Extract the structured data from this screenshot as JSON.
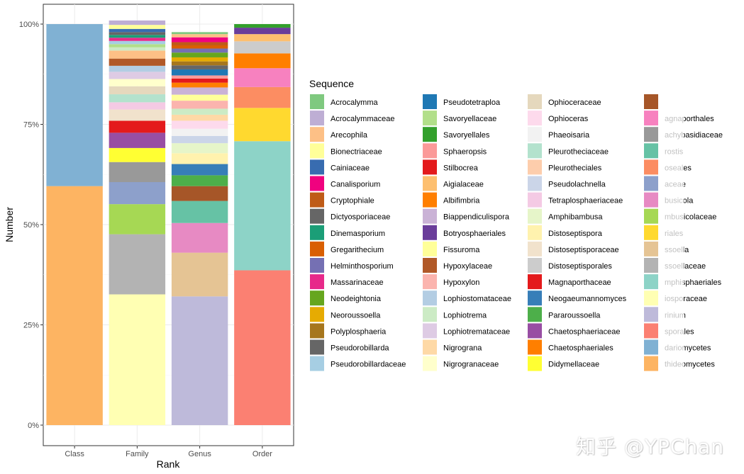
{
  "chart_data": {
    "type": "bar",
    "stacked": true,
    "percent": true,
    "xlabel": "Rank",
    "ylabel": "Number",
    "legend_title": "Sequence",
    "legend_position": "right",
    "grid": true,
    "ylim": [
      0,
      1
    ],
    "y_ticks": [
      "0%",
      "25%",
      "50%",
      "75%",
      "100%"
    ],
    "categories": [
      "Class",
      "Family",
      "Genus",
      "Order"
    ],
    "legend": [
      {
        "name": "Acrocalymma",
        "color": "#7FC97F"
      },
      {
        "name": "Acrocalymmaceae",
        "color": "#BEAED4"
      },
      {
        "name": "Arecophila",
        "color": "#FDC086"
      },
      {
        "name": "Bionectriaceae",
        "color": "#FFFF99"
      },
      {
        "name": "Cainiaceae",
        "color": "#386CB0"
      },
      {
        "name": "Canalisporium",
        "color": "#F0027F"
      },
      {
        "name": "Cryptophiale",
        "color": "#BF5B17"
      },
      {
        "name": "Dictyosporiaceae",
        "color": "#666666"
      },
      {
        "name": "Dinemasporium",
        "color": "#1B9E77"
      },
      {
        "name": "Gregarithecium",
        "color": "#D95F02"
      },
      {
        "name": "Helminthosporium",
        "color": "#7570B3"
      },
      {
        "name": "Massarinaceae",
        "color": "#E7298A"
      },
      {
        "name": "Neodeightonia",
        "color": "#66A61E"
      },
      {
        "name": "Neoroussoella",
        "color": "#E6AB02"
      },
      {
        "name": "Polyplosphaeria",
        "color": "#A6761D"
      },
      {
        "name": "Pseudorobillarda",
        "color": "#666666"
      },
      {
        "name": "Pseudorobillardaceae",
        "color": "#A6CEE3"
      },
      {
        "name": "Pseudotetraploa",
        "color": "#1F78B4"
      },
      {
        "name": "Savoryellaceae",
        "color": "#B2DF8A"
      },
      {
        "name": "Savoryellales",
        "color": "#33A02C"
      },
      {
        "name": "Sphaeropsis",
        "color": "#FB9A99"
      },
      {
        "name": "Stilbocrea",
        "color": "#E31A1C"
      },
      {
        "name": "Aigialaceae",
        "color": "#FDBF6F"
      },
      {
        "name": "Albifimbria",
        "color": "#FF7F00"
      },
      {
        "name": "Biappendiculispora",
        "color": "#CAB2D6"
      },
      {
        "name": "Botryosphaeriales",
        "color": "#6A3D9A"
      },
      {
        "name": "Fissuroma",
        "color": "#FFFF99"
      },
      {
        "name": "Hypoxylaceae",
        "color": "#B15928"
      },
      {
        "name": "Hypoxylon",
        "color": "#FBB4AE"
      },
      {
        "name": "Lophiostomataceae",
        "color": "#B3CDE3"
      },
      {
        "name": "Lophiotrema",
        "color": "#CCEBC5"
      },
      {
        "name": "Lophiotremataceae",
        "color": "#DECBE4"
      },
      {
        "name": "Nigrograna",
        "color": "#FED9A6"
      },
      {
        "name": "Nigrogranaceae",
        "color": "#FFFFCC"
      },
      {
        "name": "Ophioceraceae",
        "color": "#E5D8BD"
      },
      {
        "name": "Ophioceras",
        "color": "#FDDAEC"
      },
      {
        "name": "Phaeoisaria",
        "color": "#F2F2F2"
      },
      {
        "name": "Pleurotheciaceae",
        "color": "#B3E2CD"
      },
      {
        "name": "Pleurotheciales",
        "color": "#FDCDAC"
      },
      {
        "name": "Pseudolachnella",
        "color": "#CBD5E8"
      },
      {
        "name": "Tetraplosphaeriaceae",
        "color": "#F4CAE4"
      },
      {
        "name": "Amphibambusa",
        "color": "#E6F5C9"
      },
      {
        "name": "Distoseptispora",
        "color": "#FFF2AE"
      },
      {
        "name": "Distoseptisporaceae",
        "color": "#F1E2CC"
      },
      {
        "name": "Distoseptisporales",
        "color": "#CCCCCC"
      },
      {
        "name": "Magnaporthaceae",
        "color": "#E41A1C"
      },
      {
        "name": "Neogaeumannomyces",
        "color": "#377EB8"
      },
      {
        "name": "Pararoussoella",
        "color": "#4DAF4A"
      },
      {
        "name": "Chaetosphaeriaceae",
        "color": "#984EA3"
      },
      {
        "name": "Chaetosphaeriales",
        "color": "#FF7F00"
      },
      {
        "name": "Didymellaceae",
        "color": "#FFFF33"
      },
      {
        "name": "",
        "color": "#A65628"
      },
      {
        "name": "agnaporthales",
        "color": "#F781BF"
      },
      {
        "name": "achybasidiaceae",
        "color": "#999999"
      },
      {
        "name": "rostis",
        "color": "#66C2A5"
      },
      {
        "name": "oseales",
        "color": "#FC8D62"
      },
      {
        "name": "aceae",
        "color": "#8DA0CB"
      },
      {
        "name": "busicola",
        "color": "#E78AC3"
      },
      {
        "name": "mbusicolaceae",
        "color": "#A6D854"
      },
      {
        "name": "riales",
        "color": "#FFD92F"
      },
      {
        "name": "ssoella",
        "color": "#E5C494"
      },
      {
        "name": "ssoellaceae",
        "color": "#B3B3B3"
      },
      {
        "name": "mphisphaeriales",
        "color": "#8DD3C7"
      },
      {
        "name": "iosporaceae",
        "color": "#FFFFB3"
      },
      {
        "name": "rinium",
        "color": "#BEBADA"
      },
      {
        "name": "sporales",
        "color": "#FB8072"
      },
      {
        "name": "dariomycetes",
        "color": "#80B1D3"
      },
      {
        "name": "thideomycetes",
        "color": "#FDB462"
      }
    ],
    "bars": [
      {
        "category": "Class",
        "segments": [
          {
            "c": "#FDB462",
            "v": 0.596
          },
          {
            "c": "#80B1D3",
            "v": 0.404
          }
        ]
      },
      {
        "category": "Family",
        "segments": [
          {
            "c": "#FFFFB3",
            "v": 0.326
          },
          {
            "c": "#B3B3B3",
            "v": 0.15
          },
          {
            "c": "#A6D854",
            "v": 0.075
          },
          {
            "c": "#8DA0CB",
            "v": 0.055
          },
          {
            "c": "#999999",
            "v": 0.05
          },
          {
            "c": "#FFFF33",
            "v": 0.035
          },
          {
            "c": "#984EA3",
            "v": 0.038
          },
          {
            "c": "#E41A1C",
            "v": 0.03
          },
          {
            "c": "#F1E2CC",
            "v": 0.028
          },
          {
            "c": "#F4CAE4",
            "v": 0.018
          },
          {
            "c": "#B3E2CD",
            "v": 0.02
          },
          {
            "c": "#E5D8BD",
            "v": 0.02
          },
          {
            "c": "#FFFFCC",
            "v": 0.018
          },
          {
            "c": "#DECBE4",
            "v": 0.018
          },
          {
            "c": "#B3CDE3",
            "v": 0.015
          },
          {
            "c": "#FDBF6F",
            "v": 0.0
          },
          {
            "c": "#B15928",
            "v": 0.018
          },
          {
            "c": "#FDC086",
            "v": 0.02
          },
          {
            "c": "#CCEBC5",
            "v": 0.008
          },
          {
            "c": "#B2DF8A",
            "v": 0.008
          },
          {
            "c": "#A6CEE3",
            "v": 0.008
          },
          {
            "c": "#E7298A",
            "v": 0.008
          },
          {
            "c": "#1B9E77",
            "v": 0.007
          },
          {
            "c": "#666666",
            "v": 0.007
          },
          {
            "c": "#386CB0",
            "v": 0.008
          },
          {
            "c": "#FFFF99",
            "v": 0.01
          },
          {
            "c": "#BEAED4",
            "v": 0.011
          }
        ]
      },
      {
        "category": "Genus",
        "segments": [
          {
            "c": "#BEBADA",
            "v": 0.321
          },
          {
            "c": "#E5C494",
            "v": 0.109
          },
          {
            "c": "#E78AC3",
            "v": 0.074
          },
          {
            "c": "#66C2A5",
            "v": 0.055
          },
          {
            "c": "#A65628",
            "v": 0.037
          },
          {
            "c": "#4DAF4A",
            "v": 0.027
          },
          {
            "c": "#377EB8",
            "v": 0.028
          },
          {
            "c": "#FFF2AE",
            "v": 0.027
          },
          {
            "c": "#E6F5C9",
            "v": 0.025
          },
          {
            "c": "#CBD5E8",
            "v": 0.018
          },
          {
            "c": "#F2F2F2",
            "v": 0.018
          },
          {
            "c": "#FDDAEC",
            "v": 0.02
          },
          {
            "c": "#FED9A6",
            "v": 0.015
          },
          {
            "c": "#CCEBC5",
            "v": 0.015
          },
          {
            "c": "#FBB4AE",
            "v": 0.02
          },
          {
            "c": "#FFFF99",
            "v": 0.015
          },
          {
            "c": "#CAB2D6",
            "v": 0.018
          },
          {
            "c": "#FF7F00",
            "v": 0.012
          },
          {
            "c": "#E31A1C",
            "v": 0.01
          },
          {
            "c": "#FB9A99",
            "v": 0.008
          },
          {
            "c": "#1F78B4",
            "v": 0.015
          },
          {
            "c": "#666666",
            "v": 0.01
          },
          {
            "c": "#A6761D",
            "v": 0.01
          },
          {
            "c": "#E6AB02",
            "v": 0.01
          },
          {
            "c": "#66A61E",
            "v": 0.012
          },
          {
            "c": "#7570B3",
            "v": 0.01
          },
          {
            "c": "#D95F02",
            "v": 0.008
          },
          {
            "c": "#BF5B17",
            "v": 0.008
          },
          {
            "c": "#F0027F",
            "v": 0.012
          },
          {
            "c": "#FDC086",
            "v": 0.008
          },
          {
            "c": "#7FC97F",
            "v": 0.005
          }
        ]
      },
      {
        "category": "Order",
        "segments": [
          {
            "c": "#FB8072",
            "v": 0.386
          },
          {
            "c": "#8DD3C7",
            "v": 0.322
          },
          {
            "c": "#FFD92F",
            "v": 0.083
          },
          {
            "c": "#FC8D62",
            "v": 0.052
          },
          {
            "c": "#F781BF",
            "v": 0.047
          },
          {
            "c": "#FF7F00",
            "v": 0.037
          },
          {
            "c": "#CCCCCC",
            "v": 0.03
          },
          {
            "c": "#FDBF6F",
            "v": 0.018
          },
          {
            "c": "#6A3D9A",
            "v": 0.016
          },
          {
            "c": "#33A02C",
            "v": 0.009
          }
        ]
      }
    ]
  },
  "watermark": "知乎 @YPChan"
}
